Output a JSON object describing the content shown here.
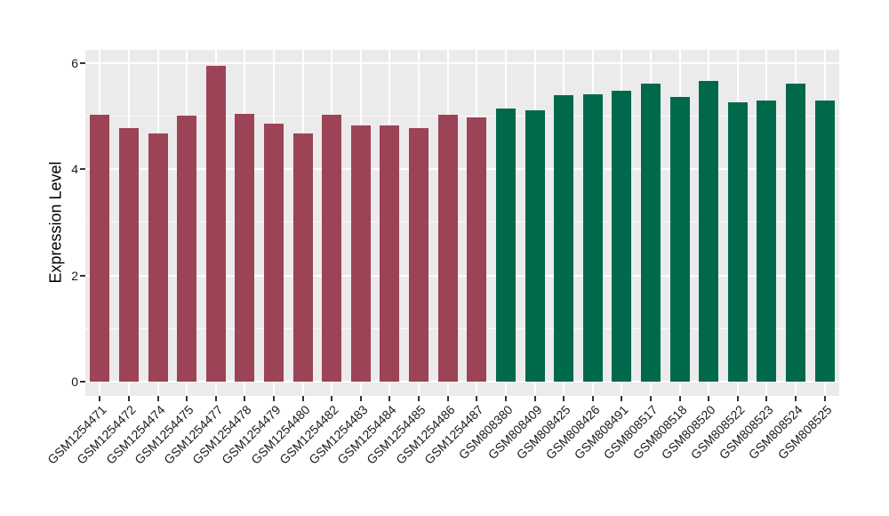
{
  "figure": {
    "background": "#ffffff"
  },
  "chart_data": {
    "type": "bar",
    "title": "",
    "xlabel": "",
    "ylabel": "Expression Level",
    "categories": [
      "GSM1254471",
      "GSM1254472",
      "GSM1254474",
      "GSM1254475",
      "GSM1254477",
      "GSM1254478",
      "GSM1254479",
      "GSM1254480",
      "GSM1254482",
      "GSM1254483",
      "GSM1254484",
      "GSM1254485",
      "GSM1254486",
      "GSM1254487",
      "GSM808380",
      "GSM808409",
      "GSM808425",
      "GSM808426",
      "GSM808491",
      "GSM808517",
      "GSM808518",
      "GSM808520",
      "GSM808522",
      "GSM808523",
      "GSM808524",
      "GSM808525"
    ],
    "values": [
      5.03,
      4.78,
      4.67,
      5.02,
      5.95,
      5.05,
      4.86,
      4.67,
      5.03,
      4.83,
      4.83,
      4.78,
      5.03,
      4.98,
      5.15,
      5.12,
      5.39,
      5.41,
      5.49,
      5.61,
      5.37,
      5.67,
      5.26,
      5.3,
      5.61,
      5.29
    ],
    "group_of_bar": [
      0,
      0,
      0,
      0,
      0,
      0,
      0,
      0,
      0,
      0,
      0,
      0,
      0,
      0,
      1,
      1,
      1,
      1,
      1,
      1,
      1,
      1,
      1,
      1,
      1,
      1
    ],
    "bar_colors_by_group": [
      "#9C4355",
      "#00694C"
    ],
    "ylim": [
      0,
      6.25
    ],
    "yticks": [
      0,
      2,
      4,
      6
    ],
    "yticks_minor": [
      1,
      3,
      5
    ],
    "grid": true,
    "legend": "none",
    "panel_background": "#EBEBEB",
    "grid_color": "#FFFFFF",
    "axis_text_color": "#1a1a1a",
    "tick_mark_color": "#333333"
  }
}
